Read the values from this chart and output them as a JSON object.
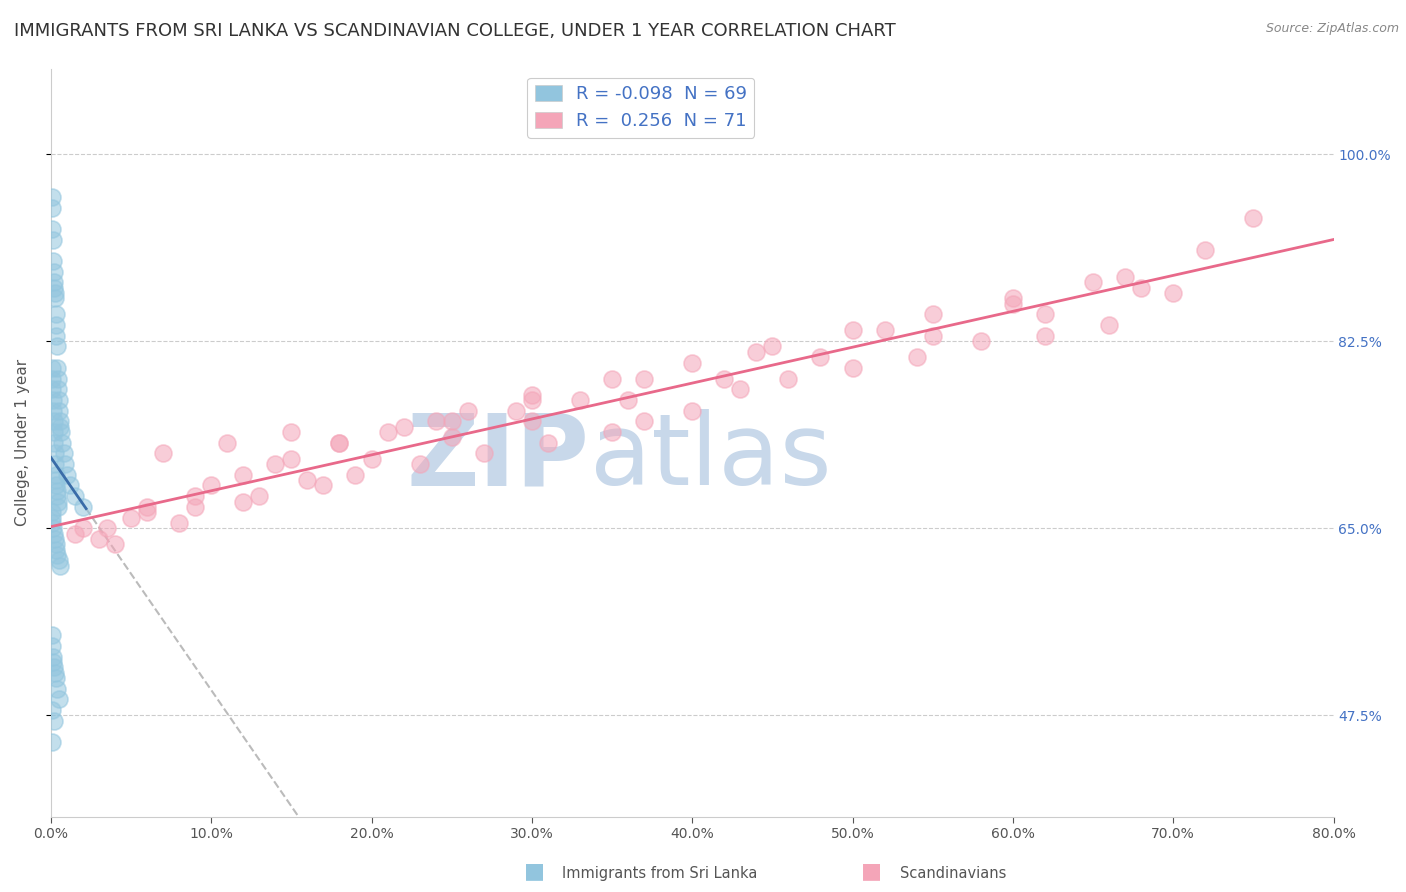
{
  "title": "IMMIGRANTS FROM SRI LANKA VS SCANDINAVIAN COLLEGE, UNDER 1 YEAR CORRELATION CHART",
  "source": "Source: ZipAtlas.com",
  "ylabel": "College, Under 1 year",
  "xlim": [
    0.0,
    80.0
  ],
  "ylim": [
    38.0,
    108.0
  ],
  "y_ticks": [
    47.5,
    65.0,
    82.5,
    100.0
  ],
  "y_ticklabels": [
    "47.5%",
    "65.0%",
    "82.5%",
    "100.0%"
  ],
  "x_ticks": [
    0,
    10,
    20,
    30,
    40,
    50,
    60,
    70,
    80
  ],
  "x_ticklabels": [
    "0.0%",
    "10.0%",
    "20.0%",
    "30.0%",
    "40.0%",
    "50.0%",
    "60.0%",
    "70.0%",
    "80.0%"
  ],
  "R_blue": -0.098,
  "N_blue": 69,
  "R_pink": 0.256,
  "N_pink": 71,
  "blue_color": "#92c5de",
  "pink_color": "#f4a5b8",
  "blue_line_color": "#3a6ca8",
  "pink_line_color": "#e8698a",
  "title_fontsize": 13,
  "legend_fontsize": 13,
  "axis_label_fontsize": 11,
  "tick_fontsize": 10,
  "watermark_zip": "ZIP",
  "watermark_atlas": "atlas",
  "watermark_color": "#c8d8ea",
  "blue_x": [
    0.05,
    0.08,
    0.1,
    0.12,
    0.15,
    0.18,
    0.2,
    0.22,
    0.25,
    0.28,
    0.3,
    0.32,
    0.35,
    0.38,
    0.4,
    0.42,
    0.45,
    0.48,
    0.5,
    0.55,
    0.6,
    0.65,
    0.7,
    0.8,
    0.9,
    1.0,
    1.2,
    1.5,
    2.0,
    0.05,
    0.08,
    0.1,
    0.12,
    0.15,
    0.18,
    0.2,
    0.22,
    0.25,
    0.28,
    0.3,
    0.32,
    0.35,
    0.38,
    0.4,
    0.42,
    0.45,
    0.05,
    0.08,
    0.1,
    0.15,
    0.2,
    0.25,
    0.3,
    0.35,
    0.4,
    0.5,
    0.6,
    0.05,
    0.08,
    0.12,
    0.15,
    0.2,
    0.25,
    0.3,
    0.4,
    0.5,
    0.05,
    0.1,
    0.2
  ],
  "blue_y": [
    96.0,
    95.0,
    93.0,
    92.0,
    90.0,
    89.0,
    88.0,
    87.5,
    87.0,
    86.5,
    85.0,
    84.0,
    83.0,
    82.0,
    80.0,
    79.0,
    78.0,
    77.0,
    76.0,
    75.0,
    74.5,
    74.0,
    73.0,
    72.0,
    71.0,
    70.0,
    69.0,
    68.0,
    67.0,
    80.0,
    79.0,
    78.0,
    77.0,
    76.0,
    75.0,
    74.0,
    73.0,
    72.0,
    71.0,
    70.0,
    69.5,
    69.0,
    68.5,
    68.0,
    67.5,
    67.0,
    66.5,
    66.0,
    65.5,
    65.0,
    64.5,
    64.0,
    63.5,
    63.0,
    62.5,
    62.0,
    61.5,
    55.0,
    54.0,
    53.0,
    52.5,
    52.0,
    51.5,
    51.0,
    50.0,
    49.0,
    45.0,
    48.0,
    47.0
  ],
  "pink_x": [
    2.0,
    5.0,
    7.0,
    9.0,
    11.0,
    13.0,
    15.0,
    17.0,
    19.0,
    21.0,
    23.0,
    25.0,
    27.0,
    29.0,
    31.0,
    33.0,
    35.0,
    37.0,
    40.0,
    43.0,
    46.0,
    50.0,
    54.0,
    58.0,
    62.0,
    66.0,
    70.0,
    3.0,
    6.0,
    9.0,
    12.0,
    15.0,
    18.0,
    22.0,
    26.0,
    30.0,
    35.0,
    40.0,
    45.0,
    50.0,
    55.0,
    60.0,
    65.0,
    4.0,
    8.0,
    12.0,
    16.0,
    20.0,
    25.0,
    30.0,
    36.0,
    42.0,
    48.0,
    55.0,
    62.0,
    68.0,
    1.5,
    3.5,
    6.0,
    10.0,
    14.0,
    18.0,
    24.0,
    30.0,
    37.0,
    44.0,
    52.0,
    60.0,
    67.0,
    72.0,
    75.0
  ],
  "pink_y": [
    65.0,
    66.0,
    72.0,
    67.0,
    73.0,
    68.0,
    74.0,
    69.0,
    70.0,
    74.0,
    71.0,
    75.0,
    72.0,
    76.0,
    73.0,
    77.0,
    74.0,
    75.0,
    76.0,
    78.0,
    79.0,
    80.0,
    81.0,
    82.5,
    83.0,
    84.0,
    87.0,
    64.0,
    66.5,
    68.0,
    70.0,
    71.5,
    73.0,
    74.5,
    76.0,
    77.5,
    79.0,
    80.5,
    82.0,
    83.5,
    85.0,
    86.5,
    88.0,
    63.5,
    65.5,
    67.5,
    69.5,
    71.5,
    73.5,
    75.0,
    77.0,
    79.0,
    81.0,
    83.0,
    85.0,
    87.5,
    64.5,
    65.0,
    67.0,
    69.0,
    71.0,
    73.0,
    75.0,
    77.0,
    79.0,
    81.5,
    83.5,
    86.0,
    88.5,
    91.0,
    94.0
  ]
}
